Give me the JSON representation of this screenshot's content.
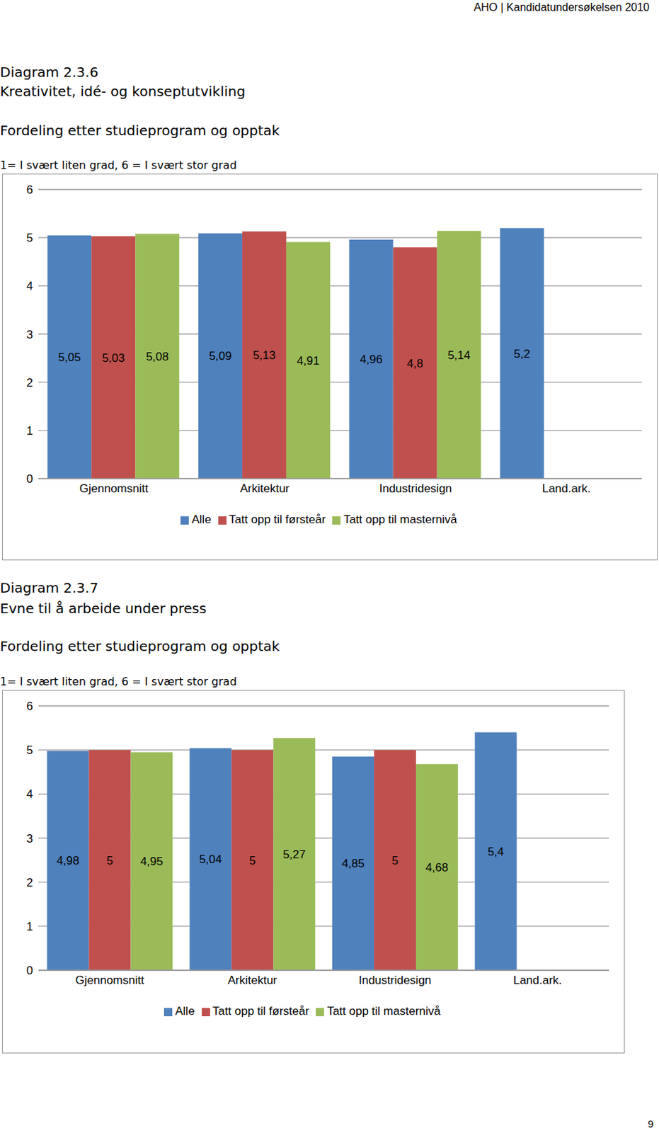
{
  "header": "AHO | Kandidatundersøkelsen 2010",
  "page_number": "9",
  "chart_data": [
    {
      "type": "bar",
      "title": "Diagram 2.3.6",
      "subtitle": [
        "Kreativitet, idé- og konseptutvikling",
        "Fordeling etter studieprogram og opptak",
        "1= I svært liten grad, 6 = I svært stor grad"
      ],
      "categories": [
        "Gjennomsnitt",
        "Arkitektur",
        "Industridesign",
        "Land.ark."
      ],
      "series": [
        {
          "name": "Alle",
          "color": "#4f81bd",
          "values": [
            5.05,
            5.09,
            4.96,
            5.2
          ],
          "value_labels": [
            "5,05",
            "5,09",
            "4,96",
            "5,2"
          ]
        },
        {
          "name": "Tatt opp til førsteår",
          "color": "#c0504d",
          "values": [
            5.03,
            5.13,
            4.8,
            null
          ],
          "value_labels": [
            "5,03",
            "5,13",
            "4,8",
            null
          ]
        },
        {
          "name": "Tatt opp til masternivå",
          "color": "#9bbb59",
          "values": [
            5.08,
            4.91,
            5.14,
            null
          ],
          "value_labels": [
            "5,08",
            "4,91",
            "5,14",
            null
          ]
        }
      ],
      "ylim": [
        0,
        6
      ],
      "yticks": [
        0,
        1,
        2,
        3,
        4,
        5,
        6
      ],
      "grid": true,
      "legend": "bottom",
      "data_labels": true
    },
    {
      "type": "bar",
      "title": "Diagram 2.3.7",
      "subtitle": [
        "Evne til å arbeide under press",
        "Fordeling etter studieprogram og opptak",
        "1= I svært liten grad, 6 = I svært stor grad"
      ],
      "categories": [
        "Gjennomsnitt",
        "Arkitektur",
        "Industridesign",
        "Land.ark."
      ],
      "series": [
        {
          "name": "Alle",
          "color": "#4f81bd",
          "values": [
            4.98,
            5.04,
            4.85,
            5.4
          ],
          "value_labels": [
            "4,98",
            "5,04",
            "4,85",
            "5,4"
          ]
        },
        {
          "name": "Tatt opp til førsteår",
          "color": "#c0504d",
          "values": [
            5,
            5,
            5,
            null
          ],
          "value_labels": [
            "5",
            "5",
            "5",
            null
          ]
        },
        {
          "name": "Tatt opp til masternivå",
          "color": "#9bbb59",
          "values": [
            4.95,
            5.27,
            4.68,
            null
          ],
          "value_labels": [
            "4,95",
            "5,27",
            "4,68",
            null
          ]
        }
      ],
      "ylim": [
        0,
        6
      ],
      "yticks": [
        0,
        1,
        2,
        3,
        4,
        5,
        6
      ],
      "grid": true,
      "legend": "bottom",
      "data_labels": true
    }
  ]
}
